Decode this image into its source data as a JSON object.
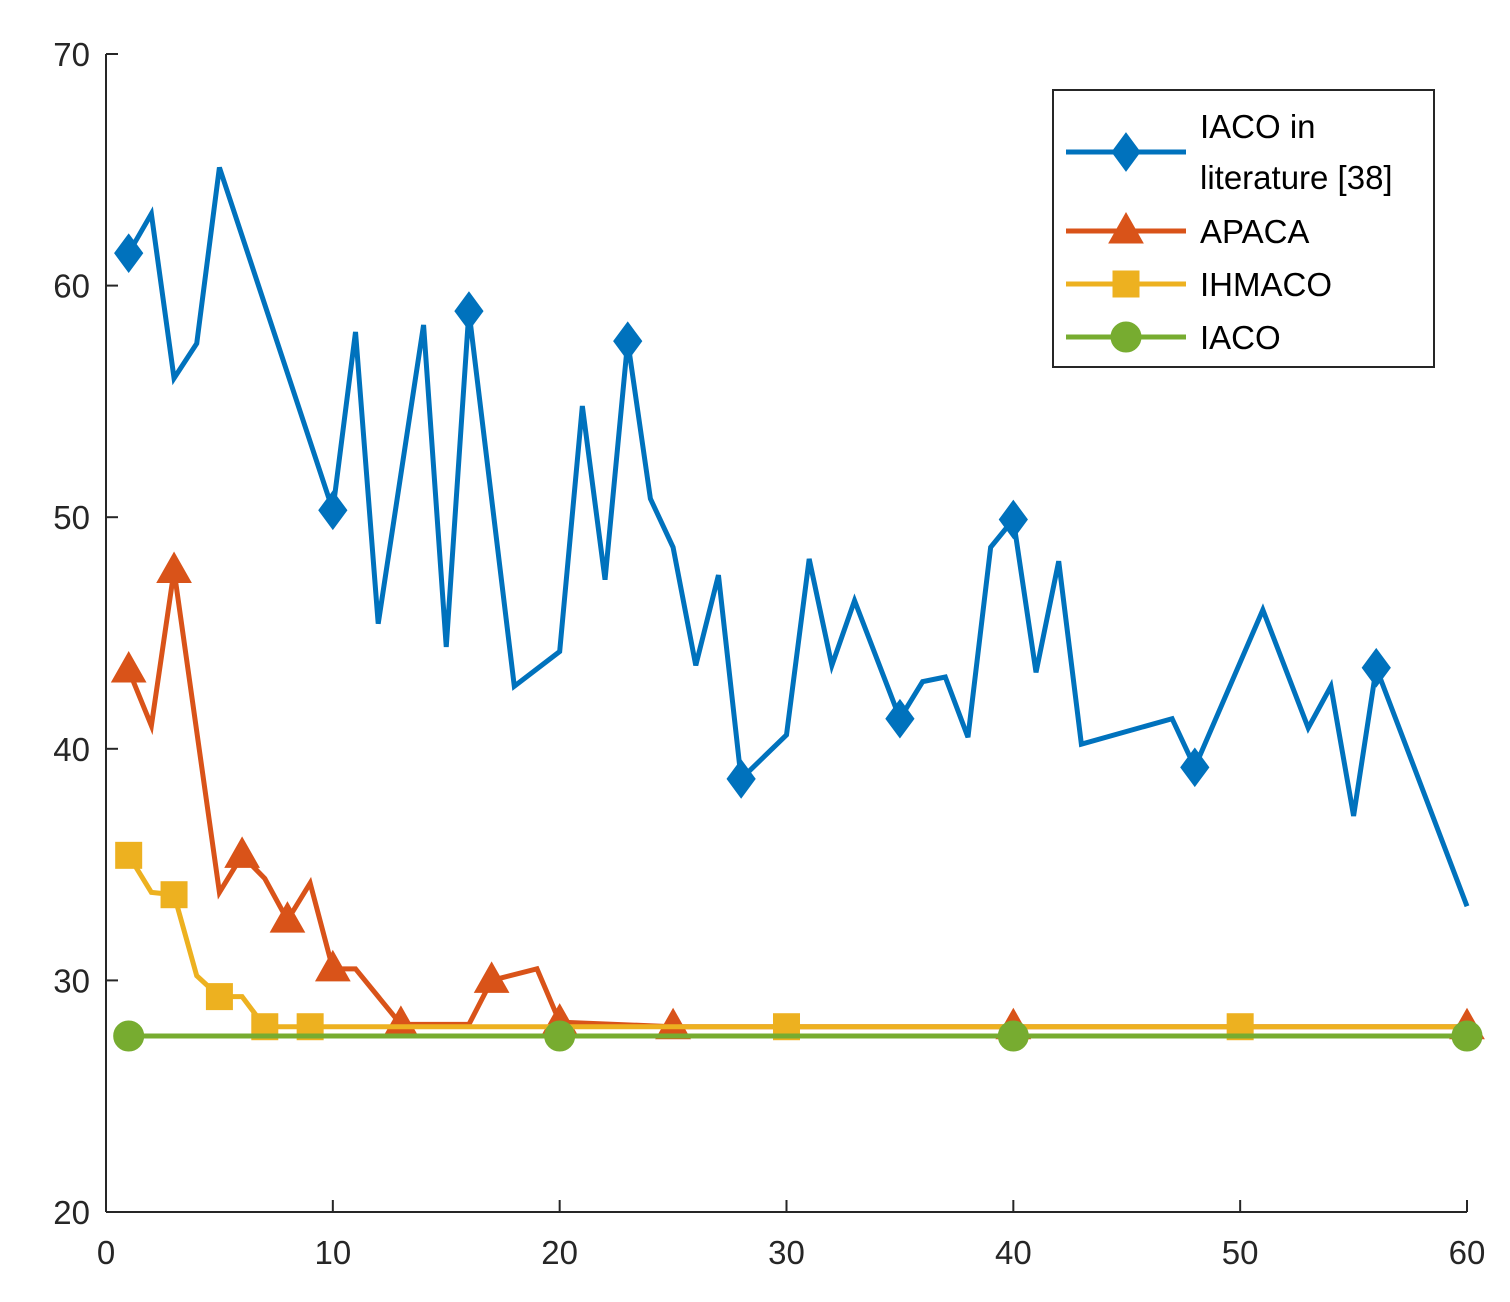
{
  "chart_data": {
    "type": "line",
    "title": "",
    "xlabel": "",
    "ylabel": "",
    "xlim": [
      0,
      60
    ],
    "ylim": [
      20,
      70
    ],
    "xticks": [
      0,
      10,
      20,
      30,
      40,
      50,
      60
    ],
    "yticks": [
      20,
      30,
      40,
      50,
      60,
      70
    ],
    "xtick_labels": [
      "0",
      "10",
      "20",
      "30",
      "40",
      "50",
      "60"
    ],
    "ytick_labels": [
      "20",
      "30",
      "40",
      "50",
      "60",
      "70"
    ],
    "grid": false,
    "legend_position": "top-right",
    "series": [
      {
        "name": "IACO in literature [38]",
        "legend_lines": [
          "IACO in",
          "literature [38]"
        ],
        "color": "#0072BD",
        "marker": "diamond",
        "x": [
          1,
          2,
          3,
          4,
          5,
          10,
          11,
          12,
          14,
          15,
          16,
          18,
          20,
          21,
          22,
          23,
          24,
          25,
          26,
          27,
          28,
          30,
          31,
          32,
          33,
          35,
          36,
          37,
          38,
          39,
          40,
          41,
          42,
          43,
          47,
          48,
          51,
          53,
          54,
          55,
          56,
          60
        ],
        "y": [
          61.4,
          63.1,
          56.0,
          57.5,
          65.1,
          50.3,
          58.0,
          45.4,
          58.3,
          44.4,
          58.9,
          42.7,
          44.2,
          54.8,
          47.3,
          57.6,
          50.8,
          48.7,
          43.6,
          47.5,
          38.7,
          40.6,
          48.2,
          43.6,
          46.4,
          41.3,
          42.9,
          43.1,
          40.5,
          48.7,
          49.9,
          43.3,
          48.1,
          40.2,
          41.3,
          39.2,
          46.0,
          40.9,
          42.7,
          37.1,
          43.5,
          33.2
        ],
        "marker_x": [
          1,
          10,
          16,
          23,
          28,
          35,
          40,
          48,
          56
        ]
      },
      {
        "name": "APACA",
        "legend_lines": [
          "APACA"
        ],
        "color": "#D95319",
        "marker": "triangle",
        "x": [
          1,
          2,
          3,
          5,
          6,
          7,
          8,
          9,
          10,
          11,
          13,
          14,
          15,
          16,
          17,
          19,
          20,
          25,
          60
        ],
        "y": [
          43.4,
          41.0,
          47.7,
          33.8,
          35.4,
          34.4,
          32.6,
          34.2,
          30.5,
          30.5,
          28.1,
          28.1,
          28.1,
          28.1,
          30.0,
          30.5,
          28.2,
          28.0,
          28.0
        ],
        "marker_x": [
          1,
          3,
          6,
          8,
          10,
          13,
          17,
          20,
          25,
          40,
          60
        ]
      },
      {
        "name": "IHMACO",
        "legend_lines": [
          "IHMACO"
        ],
        "color": "#EDB120",
        "marker": "square",
        "x": [
          1,
          2,
          3,
          4,
          5,
          6,
          7,
          9,
          10,
          30,
          50,
          60
        ],
        "y": [
          35.4,
          33.8,
          33.7,
          30.2,
          29.3,
          29.3,
          28.0,
          28.0,
          28.0,
          28.0,
          28.0,
          28.0
        ],
        "marker_x": [
          1,
          3,
          5,
          7,
          9,
          30,
          50
        ]
      },
      {
        "name": "IACO",
        "legend_lines": [
          "IACO"
        ],
        "color": "#77AC30",
        "marker": "circle",
        "x": [
          1,
          60
        ],
        "y": [
          27.6,
          27.6
        ],
        "marker_x": [
          1,
          20,
          40,
          60
        ]
      }
    ]
  }
}
